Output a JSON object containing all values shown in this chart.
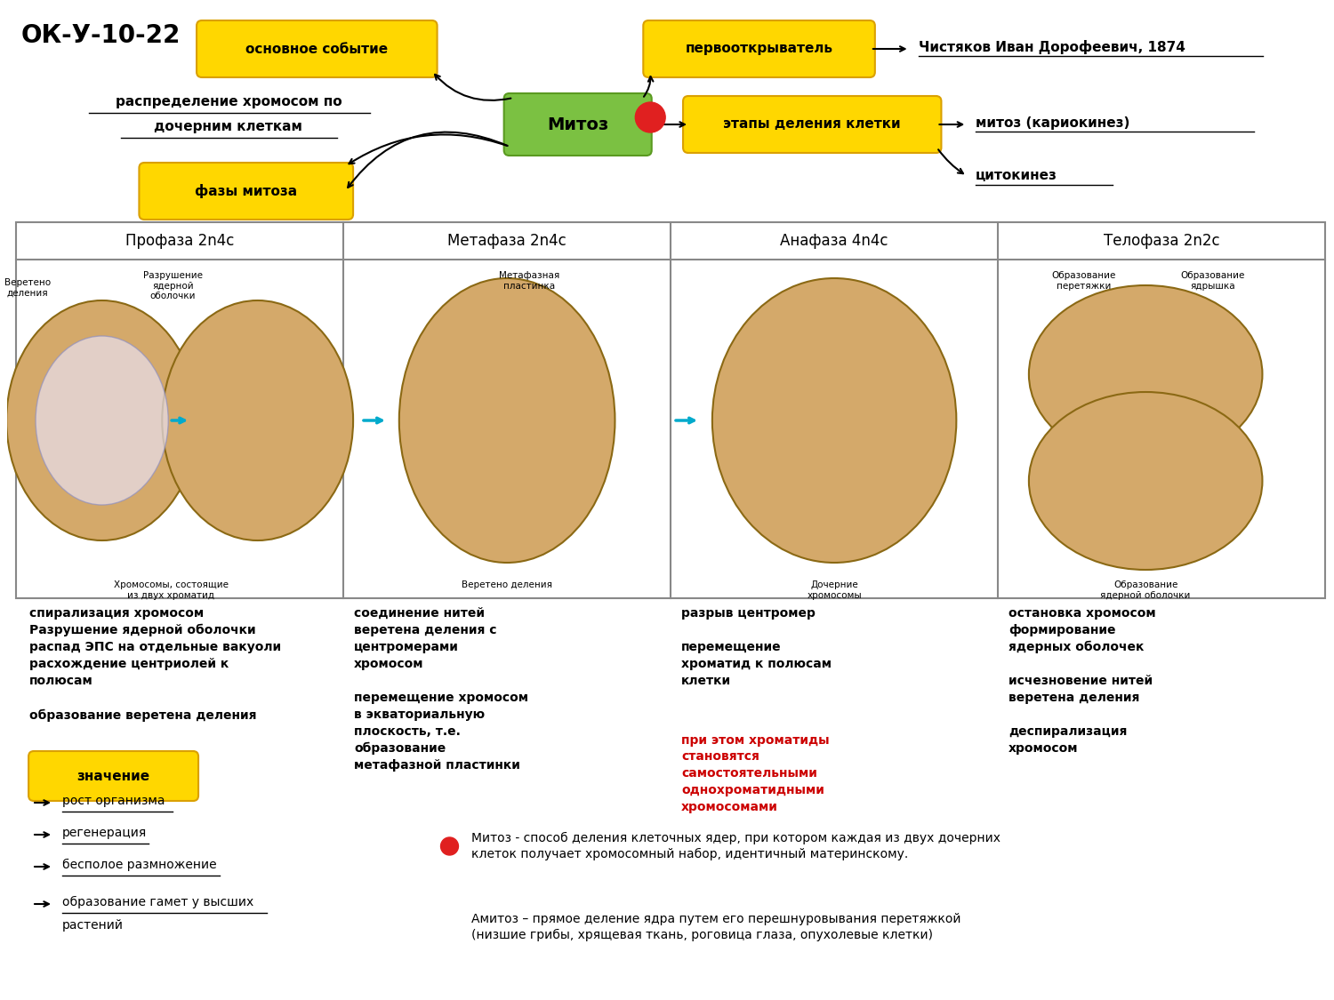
{
  "title_code": "ОК-У-10-22",
  "bg_color": "#ffffff",
  "yellow_box_color": "#FFD700",
  "yellow_box_edge": "#DAA000",
  "green_box_color": "#7BC142",
  "green_box_edge": "#5A9A20",
  "red_dot_color": "#E02020",
  "box_text_color": "#000000",
  "boxes": {
    "osnovnoe": "основное событие",
    "pervootkr": "первооткрыватель",
    "mitoz": "Митоз",
    "etapy": "этапы деления клетки",
    "fazy": "фазы митоза"
  },
  "arrow_texts": {
    "chistyakov": "Чистяков Иван Дорофеевич, 1874",
    "raspredelenie": "распределение хромосом по\nдочерним клеткам",
    "mitoz_kariokinez": "митоз (кариокинез)",
    "citokinez": "цитокинез"
  },
  "phases": [
    "Профаза 2n4c",
    "Метафаза 2n4c",
    "Анафаза 4n4с",
    "Телофаза 2n2с"
  ],
  "phase_labels_bottom": [
    "Хромосомы, состоящие\nиз двух хроматид",
    "Веретено деления",
    "Дочерние\nхромосомы",
    "Образование\nядерной оболочки"
  ],
  "anaphase_black_text": "разрыв центромер\n\nперемещение\nхроматид к полюсам\nклетки",
  "anaphase_red_text": "при этом хроматиды\nстановятся\nсамостоятельными\nоднохроматидными\nхромосомами",
  "prof_desc": "спирализация хромосом\nРазрушение ядерной оболочки\nраспад ЭПС на отдельные вакуоли\nрасхождение центриолей к\nполюсам\n\nобразование веретена деления",
  "meta_desc": "соединение нитей\nверетена деления с\nцентромерами\nхромосом\n\nперемещение хромосом\nв экваториальную\nплоскость, т.е.\nобразование\nметафазной пластинки",
  "telo_desc": "остановка хромосом\nформирование\nядерных оболочек\n\nисчезновение нитей\nверетена деления\n\nдеспирализация\nхромосом",
  "znachenie_box": "значение",
  "znachenie_items": [
    "рост организма",
    "регенерация",
    "бесполое размножение",
    "образование гамет у высших\nрастений"
  ],
  "definition1": "Митоз - способ деления клеточных ядер, при котором каждая из двух дочерних\nклеток получает хромосомный набор, идентичный материнскому.",
  "definition2": "Амитоз – прямое деление ядра путем его перешнуровывания перетяжкой\n(низшие грибы, хрящевая ткань, роговица глаза, опухолевые клетки)",
  "table_border_color": "#888888",
  "image_placeholder_color": "#D8B88A"
}
